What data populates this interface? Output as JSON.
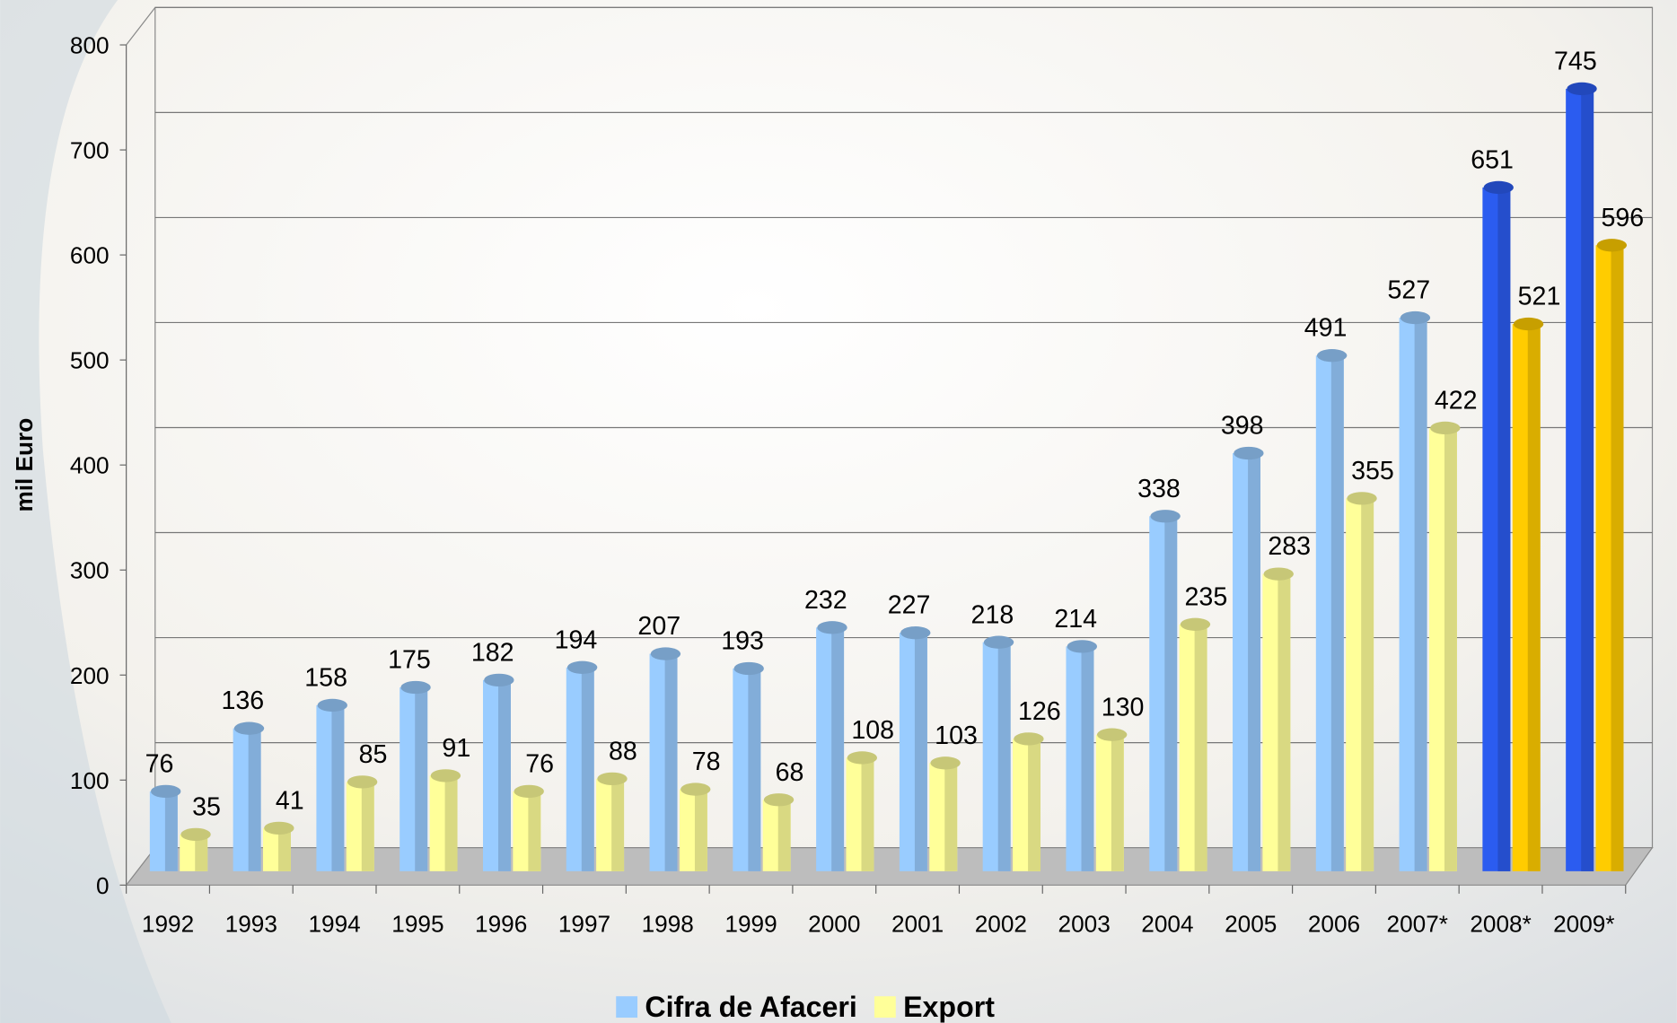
{
  "chart_data": {
    "type": "bar3d",
    "y_label": "mil Euro",
    "categories": [
      "1992",
      "1993",
      "1994",
      "1995",
      "1996",
      "1997",
      "1998",
      "1999",
      "2000",
      "2001",
      "2002",
      "2003",
      "2004",
      "2005",
      "2006",
      "2007*",
      "2008*",
      "2009*"
    ],
    "series": [
      {
        "name": "Cifra de Afaceri",
        "color": "#99ccff",
        "colors": [
          "#99ccff",
          "#99ccff",
          "#99ccff",
          "#99ccff",
          "#99ccff",
          "#99ccff",
          "#99ccff",
          "#99ccff",
          "#99ccff",
          "#99ccff",
          "#99ccff",
          "#99ccff",
          "#99ccff",
          "#99ccff",
          "#99ccff",
          "#99ccff",
          "#2b5cf0",
          "#2b5cf0"
        ],
        "values": [
          76,
          136,
          158,
          175,
          182,
          194,
          207,
          193,
          232,
          227,
          218,
          214,
          338,
          398,
          491,
          527,
          651,
          745
        ]
      },
      {
        "name": "Export",
        "color": "#ffff99",
        "colors": [
          "#ffff99",
          "#ffff99",
          "#ffff99",
          "#ffff99",
          "#ffff99",
          "#ffff99",
          "#ffff99",
          "#ffff99",
          "#ffff99",
          "#ffff99",
          "#ffff99",
          "#ffff99",
          "#ffff99",
          "#ffff99",
          "#ffff99",
          "#ffff99",
          "#ffcc00",
          "#ffcc00"
        ],
        "values": [
          35,
          41,
          85,
          91,
          76,
          88,
          78,
          68,
          108,
          103,
          126,
          130,
          235,
          283,
          355,
          422,
          521,
          596
        ]
      }
    ],
    "ylim": [
      0,
      800
    ],
    "yticks": [
      0,
      100,
      200,
      300,
      400,
      500,
      600,
      700,
      800
    ],
    "grid": true,
    "legend": "bottom"
  }
}
